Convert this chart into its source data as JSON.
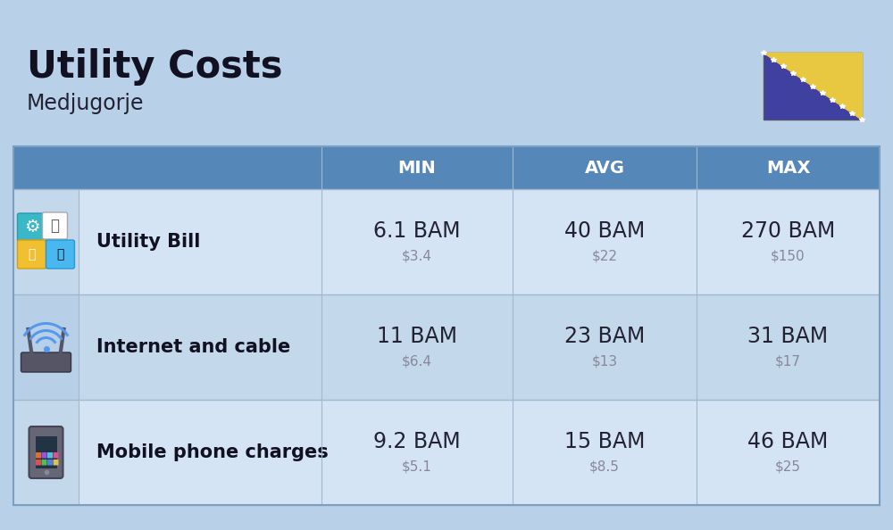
{
  "title": "Utility Costs",
  "subtitle": "Medjugorje",
  "background_color": "#b8d0e8",
  "header_color": "#5587b8",
  "row_colors_main": [
    "#d4e4f4",
    "#c4d8ec"
  ],
  "row_colors_icon": [
    "#c4d8ec",
    "#b8cfe8"
  ],
  "header_text_color": "#ffffff",
  "main_value_color": "#222233",
  "sub_value_color": "#888899",
  "label_color": "#111122",
  "divider_color": "#a0b8d0",
  "columns": [
    "MIN",
    "AVG",
    "MAX"
  ],
  "rows": [
    {
      "label": "Utility Bill",
      "min_bam": "6.1 BAM",
      "min_usd": "$3.4",
      "avg_bam": "40 BAM",
      "avg_usd": "$22",
      "max_bam": "270 BAM",
      "max_usd": "$150"
    },
    {
      "label": "Internet and cable",
      "min_bam": "11 BAM",
      "min_usd": "$6.4",
      "avg_bam": "23 BAM",
      "avg_usd": "$13",
      "max_bam": "31 BAM",
      "max_usd": "$17"
    },
    {
      "label": "Mobile phone charges",
      "min_bam": "9.2 BAM",
      "min_usd": "$5.1",
      "avg_bam": "15 BAM",
      "avg_usd": "$8.5",
      "max_bam": "46 BAM",
      "max_usd": "$25"
    }
  ],
  "title_fontsize": 30,
  "subtitle_fontsize": 17,
  "header_fontsize": 14,
  "value_fontsize": 17,
  "sub_value_fontsize": 11,
  "label_fontsize": 15,
  "flag_blue": "#4040a0",
  "flag_yellow": "#e8c840",
  "flag_star": "#ffffff"
}
